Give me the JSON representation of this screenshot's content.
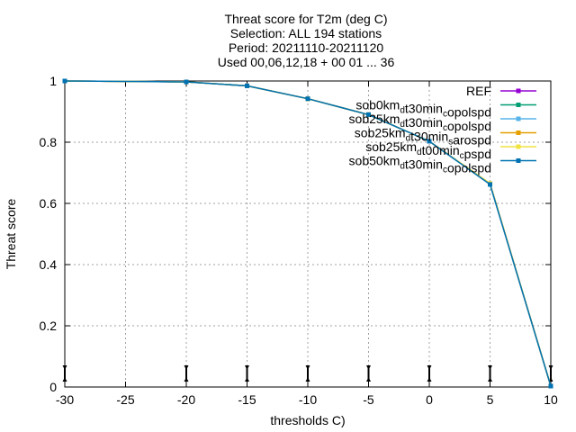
{
  "chart_data": {
    "type": "line",
    "title_lines": [
      "Threat score  for T2m (deg C)",
      "Selection: ALL    194 stations",
      "Period: 20211110-20211120",
      "Used 00,06,12,18 + 00 01 ... 36"
    ],
    "xlabel": "thresholds C)",
    "ylabel": "Threat score",
    "xlim": [
      -30,
      10
    ],
    "ylim": [
      0,
      1
    ],
    "xticks": [
      -30,
      -25,
      -20,
      -15,
      -10,
      -5,
      0,
      5,
      10
    ],
    "yticks": [
      0,
      0.2,
      0.4,
      0.6,
      0.8,
      1
    ],
    "ytick_labels": [
      "0",
      "0.2",
      "0.4",
      "0.6",
      "0.8",
      "1"
    ],
    "grid": true,
    "legend_position": "top-right",
    "x": [
      -30,
      -20,
      -15,
      -10,
      -5,
      0,
      5,
      10
    ],
    "series": [
      {
        "name": "REF",
        "color": "#9400d3",
        "values": [
          1.0,
          0.997,
          0.984,
          0.942,
          0.89,
          0.803,
          0.664,
          0.003
        ]
      },
      {
        "name": "sob0km_d t30min_c opolspd",
        "color": "#009e73",
        "values": [
          1.0,
          0.997,
          0.984,
          0.942,
          0.89,
          0.803,
          0.663,
          0.003
        ]
      },
      {
        "name": "sob25km_d t30min_c opolspd",
        "color": "#56b4e9",
        "values": [
          1.0,
          0.997,
          0.984,
          0.942,
          0.89,
          0.803,
          0.663,
          0.003
        ]
      },
      {
        "name": "sob25km_d t30min_s arospd",
        "color": "#e69f00",
        "values": [
          1.0,
          0.997,
          0.984,
          0.942,
          0.89,
          0.803,
          0.665,
          0.003
        ]
      },
      {
        "name": "sob25km_d t00min_c pspd",
        "color": "#f0e442",
        "values": [
          1.0,
          0.997,
          0.984,
          0.942,
          0.89,
          0.803,
          0.665,
          0.003
        ]
      },
      {
        "name": "sob50km_d t30min_c opolspd",
        "color": "#0072b2",
        "values": [
          1.0,
          0.997,
          0.984,
          0.942,
          0.89,
          0.803,
          0.662,
          0.003
        ]
      }
    ]
  }
}
